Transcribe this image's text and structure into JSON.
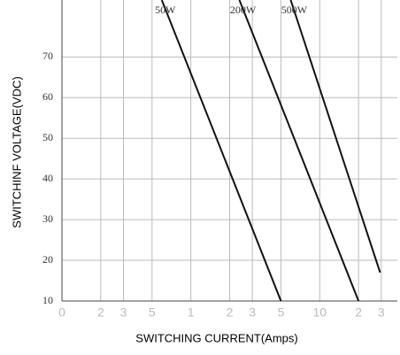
{
  "chart_data": {
    "type": "line",
    "x_label": "SWITCHING CURRENT(Amps)",
    "y_label": "SWITCHINF VOLTAGE(VDC)",
    "xscale": "log",
    "grid": true,
    "series": [
      {
        "name": "50W",
        "color": "#111111",
        "x": [
          0.595,
          5
        ],
        "values": [
          84,
          10
        ]
      },
      {
        "name": "200W",
        "color": "#111111",
        "x": [
          2.38,
          20
        ],
        "values": [
          84,
          10
        ]
      },
      {
        "name": "500W",
        "color": "#111111",
        "x": [
          5.95,
          29.4
        ],
        "values": [
          84,
          17
        ]
      }
    ],
    "xlim": [
      0.1,
      40
    ],
    "ylim": [
      10,
      84
    ],
    "xticks": [
      {
        "value": 0.1,
        "label": "0"
      },
      {
        "value": 0.2,
        "label": "2"
      },
      {
        "value": 0.3,
        "label": "3"
      },
      {
        "value": 0.5,
        "label": "5"
      },
      1,
      2,
      3,
      5,
      10,
      {
        "value": 20,
        "label": "2"
      },
      {
        "value": 30,
        "label": "3"
      }
    ],
    "yticks": [
      10,
      20,
      30,
      40,
      50,
      60,
      70
    ]
  }
}
